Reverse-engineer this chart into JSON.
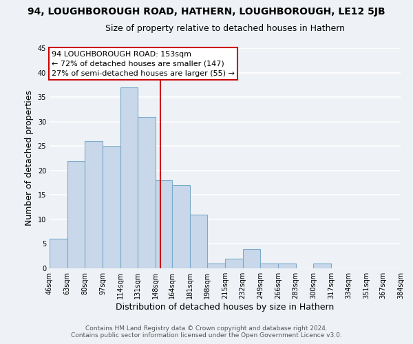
{
  "title": "94, LOUGHBOROUGH ROAD, HATHERN, LOUGHBOROUGH, LE12 5JB",
  "subtitle": "Size of property relative to detached houses in Hathern",
  "xlabel": "Distribution of detached houses by size in Hathern",
  "ylabel": "Number of detached properties",
  "bar_edges": [
    46,
    63,
    80,
    97,
    114,
    131,
    148,
    164,
    181,
    198,
    215,
    232,
    249,
    266,
    283,
    300,
    317,
    334,
    351,
    367,
    384
  ],
  "bar_heights": [
    6,
    22,
    26,
    25,
    37,
    31,
    18,
    17,
    11,
    1,
    2,
    4,
    1,
    1,
    0,
    1,
    0,
    0,
    0,
    0
  ],
  "bar_color": "#c8d8ea",
  "bar_edge_color": "#7aaac8",
  "vline_x": 153,
  "vline_color": "#cc0000",
  "annotation_line1": "94 LOUGHBOROUGH ROAD: 153sqm",
  "annotation_line2": "← 72% of detached houses are smaller (147)",
  "annotation_line3": "27% of semi-detached houses are larger (55) →",
  "annotation_box_edgecolor": "#cc0000",
  "annotation_box_facecolor": "#ffffff",
  "ylim": [
    0,
    45
  ],
  "yticks": [
    0,
    5,
    10,
    15,
    20,
    25,
    30,
    35,
    40,
    45
  ],
  "tick_labels": [
    "46sqm",
    "63sqm",
    "80sqm",
    "97sqm",
    "114sqm",
    "131sqm",
    "148sqm",
    "164sqm",
    "181sqm",
    "198sqm",
    "215sqm",
    "232sqm",
    "249sqm",
    "266sqm",
    "283sqm",
    "300sqm",
    "317sqm",
    "334sqm",
    "351sqm",
    "367sqm",
    "384sqm"
  ],
  "footer_line1": "Contains HM Land Registry data © Crown copyright and database right 2024.",
  "footer_line2": "Contains public sector information licensed under the Open Government Licence v3.0.",
  "background_color": "#eef2f6",
  "plot_bg_color": "#eef2f6",
  "grid_color": "#ffffff",
  "title_fontsize": 10,
  "subtitle_fontsize": 9,
  "axis_label_fontsize": 9,
  "tick_fontsize": 7,
  "annotation_fontsize": 8,
  "footer_fontsize": 6.5
}
